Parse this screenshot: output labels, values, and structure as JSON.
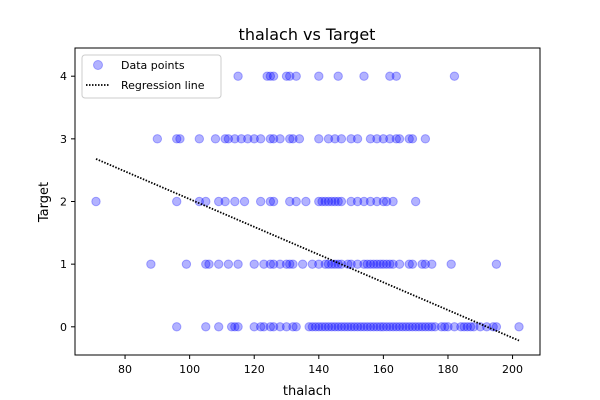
{
  "chart_data": {
    "type": "scatter",
    "title": "thalach vs Target",
    "xlabel": "thalach",
    "ylabel": "Target",
    "xlim": [
      64.5,
      208.5
    ],
    "ylim": [
      -0.45,
      4.45
    ],
    "xticks": [
      80,
      100,
      120,
      140,
      160,
      180,
      200
    ],
    "yticks": [
      0,
      1,
      2,
      3,
      4
    ],
    "grid": false,
    "legend_position": "top-left",
    "point_color": "#0000ff",
    "point_alpha": 0.3,
    "line_color": "#000000",
    "series": [
      {
        "name": "Data points",
        "points": [
          {
            "x": 115,
            "y": 4
          },
          {
            "x": 124,
            "y": 4
          },
          {
            "x": 125,
            "y": 4
          },
          {
            "x": 126,
            "y": 4
          },
          {
            "x": 130,
            "y": 4
          },
          {
            "x": 131,
            "y": 4
          },
          {
            "x": 133,
            "y": 4
          },
          {
            "x": 140,
            "y": 4
          },
          {
            "x": 146,
            "y": 4
          },
          {
            "x": 154,
            "y": 4
          },
          {
            "x": 162,
            "y": 4
          },
          {
            "x": 164,
            "y": 4
          },
          {
            "x": 182,
            "y": 4
          },
          {
            "x": 90,
            "y": 3
          },
          {
            "x": 96,
            "y": 3
          },
          {
            "x": 97,
            "y": 3
          },
          {
            "x": 103,
            "y": 3
          },
          {
            "x": 108,
            "y": 3
          },
          {
            "x": 111,
            "y": 3
          },
          {
            "x": 112,
            "y": 3
          },
          {
            "x": 114,
            "y": 3
          },
          {
            "x": 116,
            "y": 3
          },
          {
            "x": 118,
            "y": 3
          },
          {
            "x": 120,
            "y": 3
          },
          {
            "x": 122,
            "y": 3
          },
          {
            "x": 125,
            "y": 3
          },
          {
            "x": 126,
            "y": 3
          },
          {
            "x": 128,
            "y": 3
          },
          {
            "x": 131,
            "y": 3
          },
          {
            "x": 132,
            "y": 3
          },
          {
            "x": 134,
            "y": 3
          },
          {
            "x": 140,
            "y": 3
          },
          {
            "x": 143,
            "y": 3
          },
          {
            "x": 145,
            "y": 3
          },
          {
            "x": 147,
            "y": 3
          },
          {
            "x": 150,
            "y": 3
          },
          {
            "x": 152,
            "y": 3
          },
          {
            "x": 156,
            "y": 3
          },
          {
            "x": 158,
            "y": 3
          },
          {
            "x": 160,
            "y": 3
          },
          {
            "x": 162,
            "y": 3
          },
          {
            "x": 164,
            "y": 3
          },
          {
            "x": 165,
            "y": 3
          },
          {
            "x": 168,
            "y": 3
          },
          {
            "x": 169,
            "y": 3
          },
          {
            "x": 173,
            "y": 3
          },
          {
            "x": 71,
            "y": 2
          },
          {
            "x": 96,
            "y": 2
          },
          {
            "x": 103,
            "y": 2
          },
          {
            "x": 105,
            "y": 2
          },
          {
            "x": 109,
            "y": 2
          },
          {
            "x": 111,
            "y": 2
          },
          {
            "x": 114,
            "y": 2
          },
          {
            "x": 117,
            "y": 2
          },
          {
            "x": 122,
            "y": 2
          },
          {
            "x": 125,
            "y": 2
          },
          {
            "x": 126,
            "y": 2
          },
          {
            "x": 131,
            "y": 2
          },
          {
            "x": 133,
            "y": 2
          },
          {
            "x": 136,
            "y": 2
          },
          {
            "x": 140,
            "y": 2
          },
          {
            "x": 141,
            "y": 2
          },
          {
            "x": 142,
            "y": 2
          },
          {
            "x": 143,
            "y": 2
          },
          {
            "x": 144,
            "y": 2
          },
          {
            "x": 145,
            "y": 2
          },
          {
            "x": 146,
            "y": 2
          },
          {
            "x": 147,
            "y": 2
          },
          {
            "x": 150,
            "y": 2
          },
          {
            "x": 152,
            "y": 2
          },
          {
            "x": 154,
            "y": 2
          },
          {
            "x": 156,
            "y": 2
          },
          {
            "x": 158,
            "y": 2
          },
          {
            "x": 160,
            "y": 2
          },
          {
            "x": 161,
            "y": 2
          },
          {
            "x": 163,
            "y": 2
          },
          {
            "x": 170,
            "y": 2
          },
          {
            "x": 88,
            "y": 1
          },
          {
            "x": 99,
            "y": 1
          },
          {
            "x": 105,
            "y": 1
          },
          {
            "x": 106,
            "y": 1
          },
          {
            "x": 109,
            "y": 1
          },
          {
            "x": 112,
            "y": 1
          },
          {
            "x": 115,
            "y": 1
          },
          {
            "x": 120,
            "y": 1
          },
          {
            "x": 123,
            "y": 1
          },
          {
            "x": 125,
            "y": 1
          },
          {
            "x": 126,
            "y": 1
          },
          {
            "x": 128,
            "y": 1
          },
          {
            "x": 130,
            "y": 1
          },
          {
            "x": 131,
            "y": 1
          },
          {
            "x": 132,
            "y": 1
          },
          {
            "x": 135,
            "y": 1
          },
          {
            "x": 138,
            "y": 1
          },
          {
            "x": 140,
            "y": 1
          },
          {
            "x": 142,
            "y": 1
          },
          {
            "x": 143,
            "y": 1
          },
          {
            "x": 144,
            "y": 1
          },
          {
            "x": 145,
            "y": 1
          },
          {
            "x": 146,
            "y": 1
          },
          {
            "x": 147,
            "y": 1
          },
          {
            "x": 149,
            "y": 1
          },
          {
            "x": 150,
            "y": 1
          },
          {
            "x": 152,
            "y": 1
          },
          {
            "x": 154,
            "y": 1
          },
          {
            "x": 155,
            "y": 1
          },
          {
            "x": 156,
            "y": 1
          },
          {
            "x": 157,
            "y": 1
          },
          {
            "x": 158,
            "y": 1
          },
          {
            "x": 159,
            "y": 1
          },
          {
            "x": 160,
            "y": 1
          },
          {
            "x": 161,
            "y": 1
          },
          {
            "x": 162,
            "y": 1
          },
          {
            "x": 163,
            "y": 1
          },
          {
            "x": 165,
            "y": 1
          },
          {
            "x": 168,
            "y": 1
          },
          {
            "x": 169,
            "y": 1
          },
          {
            "x": 172,
            "y": 1
          },
          {
            "x": 173,
            "y": 1
          },
          {
            "x": 175,
            "y": 1
          },
          {
            "x": 181,
            "y": 1
          },
          {
            "x": 195,
            "y": 1
          },
          {
            "x": 96,
            "y": 0
          },
          {
            "x": 105,
            "y": 0
          },
          {
            "x": 109,
            "y": 0
          },
          {
            "x": 113,
            "y": 0
          },
          {
            "x": 114,
            "y": 0
          },
          {
            "x": 115,
            "y": 0
          },
          {
            "x": 120,
            "y": 0
          },
          {
            "x": 122,
            "y": 0
          },
          {
            "x": 123,
            "y": 0
          },
          {
            "x": 125,
            "y": 0
          },
          {
            "x": 126,
            "y": 0
          },
          {
            "x": 128,
            "y": 0
          },
          {
            "x": 130,
            "y": 0
          },
          {
            "x": 132,
            "y": 0
          },
          {
            "x": 133,
            "y": 0
          },
          {
            "x": 137,
            "y": 0
          },
          {
            "x": 138,
            "y": 0
          },
          {
            "x": 139,
            "y": 0
          },
          {
            "x": 140,
            "y": 0
          },
          {
            "x": 141,
            "y": 0
          },
          {
            "x": 142,
            "y": 0
          },
          {
            "x": 143,
            "y": 0
          },
          {
            "x": 144,
            "y": 0
          },
          {
            "x": 145,
            "y": 0
          },
          {
            "x": 146,
            "y": 0
          },
          {
            "x": 147,
            "y": 0
          },
          {
            "x": 148,
            "y": 0
          },
          {
            "x": 149,
            "y": 0
          },
          {
            "x": 150,
            "y": 0
          },
          {
            "x": 151,
            "y": 0
          },
          {
            "x": 152,
            "y": 0
          },
          {
            "x": 153,
            "y": 0
          },
          {
            "x": 154,
            "y": 0
          },
          {
            "x": 155,
            "y": 0
          },
          {
            "x": 156,
            "y": 0
          },
          {
            "x": 157,
            "y": 0
          },
          {
            "x": 158,
            "y": 0
          },
          {
            "x": 159,
            "y": 0
          },
          {
            "x": 160,
            "y": 0
          },
          {
            "x": 161,
            "y": 0
          },
          {
            "x": 162,
            "y": 0
          },
          {
            "x": 163,
            "y": 0
          },
          {
            "x": 164,
            "y": 0
          },
          {
            "x": 165,
            "y": 0
          },
          {
            "x": 166,
            "y": 0
          },
          {
            "x": 167,
            "y": 0
          },
          {
            "x": 168,
            "y": 0
          },
          {
            "x": 169,
            "y": 0
          },
          {
            "x": 170,
            "y": 0
          },
          {
            "x": 171,
            "y": 0
          },
          {
            "x": 172,
            "y": 0
          },
          {
            "x": 173,
            "y": 0
          },
          {
            "x": 174,
            "y": 0
          },
          {
            "x": 175,
            "y": 0
          },
          {
            "x": 176,
            "y": 0
          },
          {
            "x": 178,
            "y": 0
          },
          {
            "x": 179,
            "y": 0
          },
          {
            "x": 180,
            "y": 0
          },
          {
            "x": 182,
            "y": 0
          },
          {
            "x": 184,
            "y": 0
          },
          {
            "x": 185,
            "y": 0
          },
          {
            "x": 186,
            "y": 0
          },
          {
            "x": 187,
            "y": 0
          },
          {
            "x": 188,
            "y": 0
          },
          {
            "x": 190,
            "y": 0
          },
          {
            "x": 192,
            "y": 0
          },
          {
            "x": 194,
            "y": 0
          },
          {
            "x": 195,
            "y": 0
          },
          {
            "x": 202,
            "y": 0
          }
        ]
      },
      {
        "name": "Regression line",
        "style": "dotted",
        "points": [
          {
            "x": 71,
            "y": 2.68
          },
          {
            "x": 202,
            "y": -0.22
          }
        ]
      }
    ]
  }
}
